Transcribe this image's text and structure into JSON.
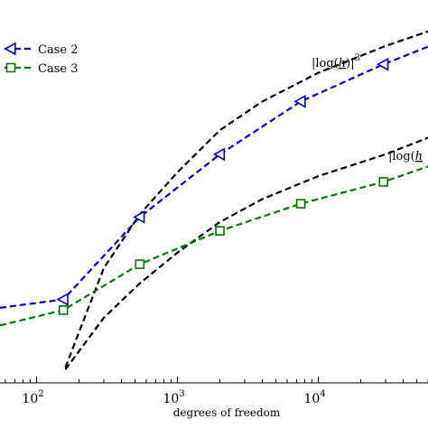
{
  "chart_data": {
    "type": "line",
    "xlabel": "degrees of freedom",
    "ylabel": "",
    "x_scale": "log",
    "xlim": [
      55,
      60000
    ],
    "ylim": [
      0,
      1
    ],
    "grid": false,
    "legend_position": "top-left",
    "x_ticks": [
      {
        "base": "10",
        "exp": "2",
        "value": 100
      },
      {
        "base": "10",
        "exp": "3",
        "value": 1000
      },
      {
        "base": "10",
        "exp": "4",
        "value": 10000
      }
    ],
    "series": [
      {
        "name": "Case 2",
        "color": "#0000cc",
        "marker": "triangle-left",
        "x": [
          55,
          155,
          540,
          2000,
          7500,
          29000,
          60000
        ],
        "y": [
          0.196,
          0.218,
          0.433,
          0.597,
          0.735,
          0.832,
          0.878
        ]
      },
      {
        "name": "Case 3",
        "color": "#007a00",
        "marker": "square",
        "x": [
          55,
          155,
          540,
          2000,
          7500,
          29000,
          60000
        ],
        "y": [
          0.15,
          0.19,
          0.31,
          0.397,
          0.468,
          0.525,
          0.565
        ]
      },
      {
        "color": "#000000",
        "marker": "none",
        "x": [
          160,
          300,
          540,
          1000,
          2000,
          4000,
          10000,
          30000,
          60000
        ],
        "y": [
          0.04,
          0.3,
          0.44,
          0.55,
          0.66,
          0.735,
          0.81,
          0.88,
          0.918
        ]
      },
      {
        "color": "#000000",
        "marker": "none",
        "x": [
          160,
          300,
          540,
          1000,
          2000,
          4000,
          10000,
          30000,
          60000
        ],
        "y": [
          0.035,
          0.17,
          0.26,
          0.34,
          0.42,
          0.48,
          0.54,
          0.597,
          0.64
        ]
      }
    ],
    "annotations": [
      {
        "text_pre": "|log(",
        "text_h": "h",
        "text_post": ")|",
        "sup": "3"
      },
      {
        "text_pre": "|log(",
        "text_h": "h",
        "text_post": "",
        "sup": ""
      }
    ]
  }
}
